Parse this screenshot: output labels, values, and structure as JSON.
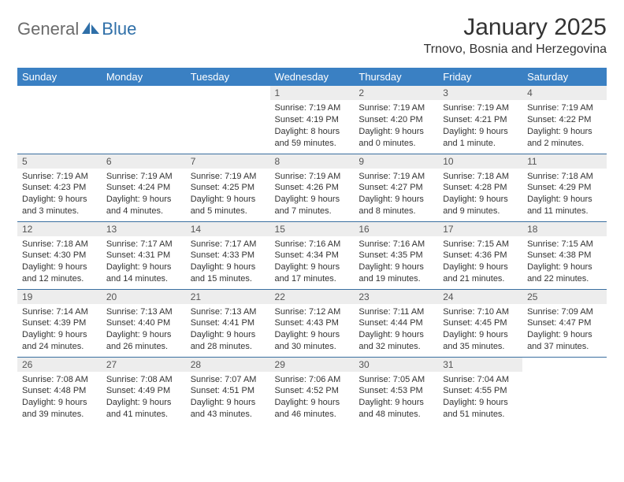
{
  "logo": {
    "text1": "General",
    "text2": "Blue",
    "brand_color": "#2f6fa8",
    "gray": "#6b6b6b"
  },
  "header": {
    "title": "January 2025",
    "location": "Trnovo, Bosnia and Herzegovina"
  },
  "colors": {
    "header_bg": "#3a80c3",
    "header_text": "#ffffff",
    "daynum_bg": "#ededed",
    "rule": "#3a6fa0",
    "body_text": "#333333"
  },
  "weekdays": [
    "Sunday",
    "Monday",
    "Tuesday",
    "Wednesday",
    "Thursday",
    "Friday",
    "Saturday"
  ],
  "weeks": [
    [
      null,
      null,
      null,
      {
        "n": "1",
        "sunrise": "7:19 AM",
        "sunset": "4:19 PM",
        "daylight": "8 hours and 59 minutes."
      },
      {
        "n": "2",
        "sunrise": "7:19 AM",
        "sunset": "4:20 PM",
        "daylight": "9 hours and 0 minutes."
      },
      {
        "n": "3",
        "sunrise": "7:19 AM",
        "sunset": "4:21 PM",
        "daylight": "9 hours and 1 minute."
      },
      {
        "n": "4",
        "sunrise": "7:19 AM",
        "sunset": "4:22 PM",
        "daylight": "9 hours and 2 minutes."
      }
    ],
    [
      {
        "n": "5",
        "sunrise": "7:19 AM",
        "sunset": "4:23 PM",
        "daylight": "9 hours and 3 minutes."
      },
      {
        "n": "6",
        "sunrise": "7:19 AM",
        "sunset": "4:24 PM",
        "daylight": "9 hours and 4 minutes."
      },
      {
        "n": "7",
        "sunrise": "7:19 AM",
        "sunset": "4:25 PM",
        "daylight": "9 hours and 5 minutes."
      },
      {
        "n": "8",
        "sunrise": "7:19 AM",
        "sunset": "4:26 PM",
        "daylight": "9 hours and 7 minutes."
      },
      {
        "n": "9",
        "sunrise": "7:19 AM",
        "sunset": "4:27 PM",
        "daylight": "9 hours and 8 minutes."
      },
      {
        "n": "10",
        "sunrise": "7:18 AM",
        "sunset": "4:28 PM",
        "daylight": "9 hours and 9 minutes."
      },
      {
        "n": "11",
        "sunrise": "7:18 AM",
        "sunset": "4:29 PM",
        "daylight": "9 hours and 11 minutes."
      }
    ],
    [
      {
        "n": "12",
        "sunrise": "7:18 AM",
        "sunset": "4:30 PM",
        "daylight": "9 hours and 12 minutes."
      },
      {
        "n": "13",
        "sunrise": "7:17 AM",
        "sunset": "4:31 PM",
        "daylight": "9 hours and 14 minutes."
      },
      {
        "n": "14",
        "sunrise": "7:17 AM",
        "sunset": "4:33 PM",
        "daylight": "9 hours and 15 minutes."
      },
      {
        "n": "15",
        "sunrise": "7:16 AM",
        "sunset": "4:34 PM",
        "daylight": "9 hours and 17 minutes."
      },
      {
        "n": "16",
        "sunrise": "7:16 AM",
        "sunset": "4:35 PM",
        "daylight": "9 hours and 19 minutes."
      },
      {
        "n": "17",
        "sunrise": "7:15 AM",
        "sunset": "4:36 PM",
        "daylight": "9 hours and 21 minutes."
      },
      {
        "n": "18",
        "sunrise": "7:15 AM",
        "sunset": "4:38 PM",
        "daylight": "9 hours and 22 minutes."
      }
    ],
    [
      {
        "n": "19",
        "sunrise": "7:14 AM",
        "sunset": "4:39 PM",
        "daylight": "9 hours and 24 minutes."
      },
      {
        "n": "20",
        "sunrise": "7:13 AM",
        "sunset": "4:40 PM",
        "daylight": "9 hours and 26 minutes."
      },
      {
        "n": "21",
        "sunrise": "7:13 AM",
        "sunset": "4:41 PM",
        "daylight": "9 hours and 28 minutes."
      },
      {
        "n": "22",
        "sunrise": "7:12 AM",
        "sunset": "4:43 PM",
        "daylight": "9 hours and 30 minutes."
      },
      {
        "n": "23",
        "sunrise": "7:11 AM",
        "sunset": "4:44 PM",
        "daylight": "9 hours and 32 minutes."
      },
      {
        "n": "24",
        "sunrise": "7:10 AM",
        "sunset": "4:45 PM",
        "daylight": "9 hours and 35 minutes."
      },
      {
        "n": "25",
        "sunrise": "7:09 AM",
        "sunset": "4:47 PM",
        "daylight": "9 hours and 37 minutes."
      }
    ],
    [
      {
        "n": "26",
        "sunrise": "7:08 AM",
        "sunset": "4:48 PM",
        "daylight": "9 hours and 39 minutes."
      },
      {
        "n": "27",
        "sunrise": "7:08 AM",
        "sunset": "4:49 PM",
        "daylight": "9 hours and 41 minutes."
      },
      {
        "n": "28",
        "sunrise": "7:07 AM",
        "sunset": "4:51 PM",
        "daylight": "9 hours and 43 minutes."
      },
      {
        "n": "29",
        "sunrise": "7:06 AM",
        "sunset": "4:52 PM",
        "daylight": "9 hours and 46 minutes."
      },
      {
        "n": "30",
        "sunrise": "7:05 AM",
        "sunset": "4:53 PM",
        "daylight": "9 hours and 48 minutes."
      },
      {
        "n": "31",
        "sunrise": "7:04 AM",
        "sunset": "4:55 PM",
        "daylight": "9 hours and 51 minutes."
      },
      null
    ]
  ],
  "labels": {
    "sunrise": "Sunrise:",
    "sunset": "Sunset:",
    "daylight": "Daylight:"
  }
}
